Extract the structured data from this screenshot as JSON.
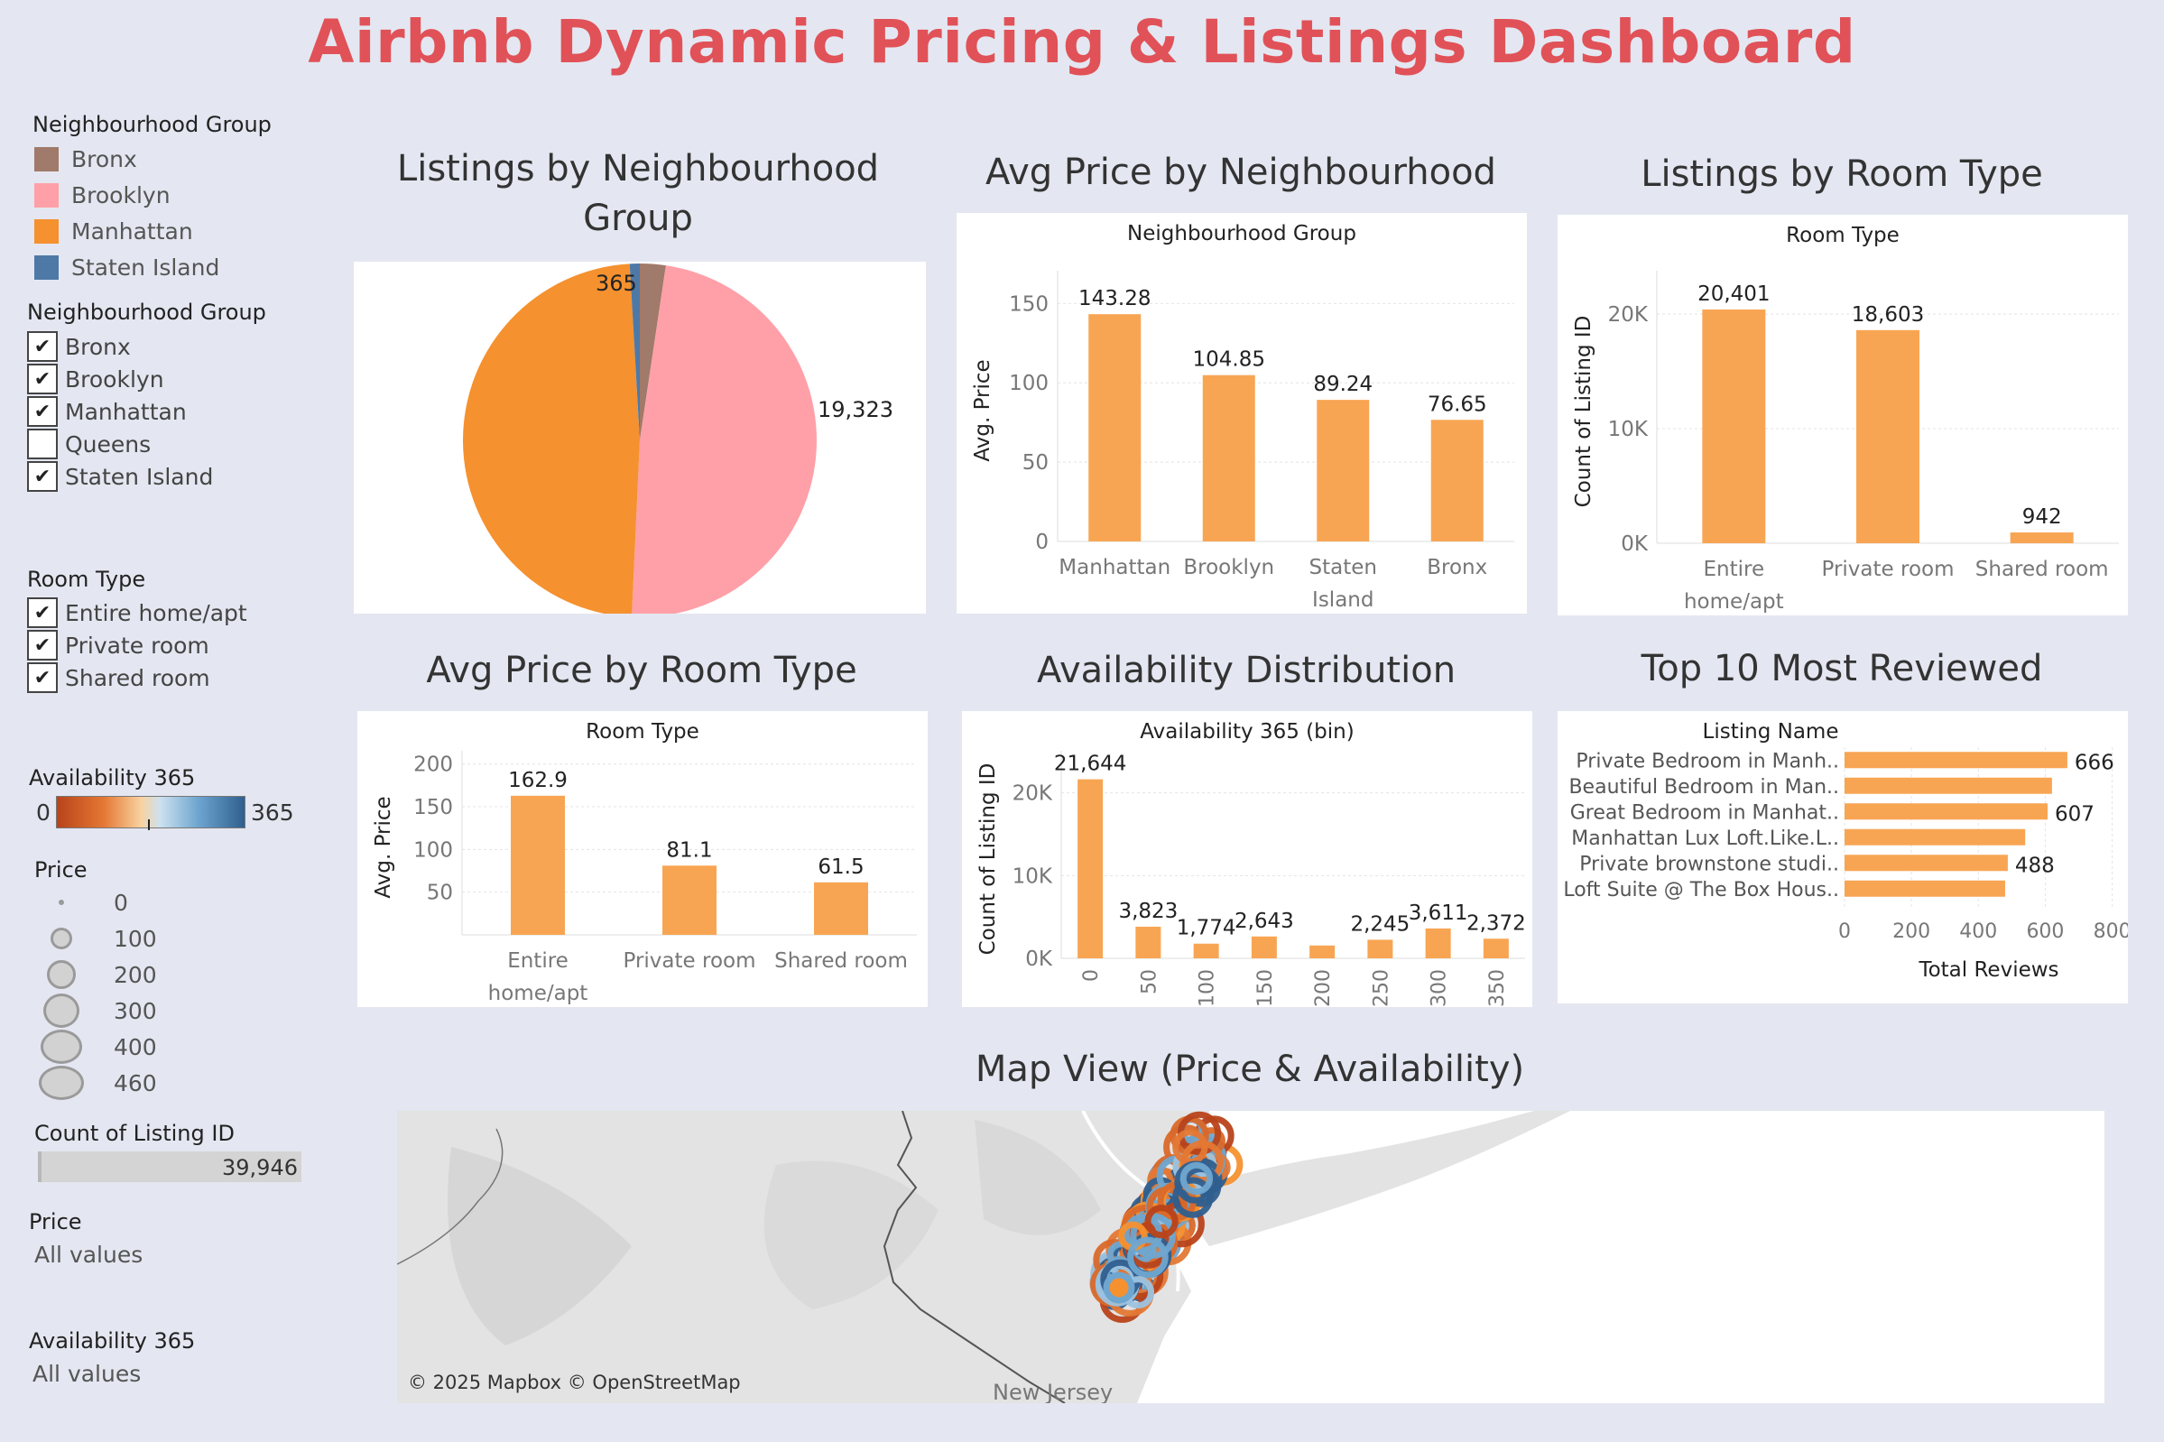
{
  "title": "Airbnb Dynamic Pricing & Listings Dashboard",
  "colors": {
    "bar": "#f8a553",
    "bronx": "#a07a6a",
    "brooklyn": "#ffa0a8",
    "manhattan": "#f5912f",
    "staten_island": "#4e79a7",
    "title": "#e05258"
  },
  "filters": {
    "legend_title": "Neighbourhood Group",
    "legend_items": [
      {
        "label": "Bronx",
        "color": "#a07a6a"
      },
      {
        "label": "Brooklyn",
        "color": "#ffa0a8"
      },
      {
        "label": "Manhattan",
        "color": "#f5912f"
      },
      {
        "label": "Staten Island",
        "color": "#4e79a7"
      }
    ],
    "ng_filter_title": "Neighbourhood Group",
    "ng_options": [
      {
        "label": "Bronx",
        "checked": true
      },
      {
        "label": "Brooklyn",
        "checked": true
      },
      {
        "label": "Manhattan",
        "checked": true
      },
      {
        "label": "Queens",
        "checked": false
      },
      {
        "label": "Staten Island",
        "checked": true
      }
    ],
    "rt_filter_title": "Room Type",
    "rt_options": [
      {
        "label": "Entire home/apt",
        "checked": true
      },
      {
        "label": "Private room",
        "checked": true
      },
      {
        "label": "Shared room",
        "checked": true
      }
    ],
    "avail_title": "Availability 365",
    "avail_min": "0",
    "avail_max": "365",
    "price_title": "Price",
    "price_sizes": [
      "0",
      "100",
      "200",
      "300",
      "400",
      "460"
    ],
    "count_title": "Count of Listing ID",
    "count_value": "39,946",
    "price_filter_title": "Price",
    "price_filter_value": "All values",
    "avail_filter_title": "Availability 365",
    "avail_filter_value": "All values"
  },
  "map": {
    "title": "Map View (Price & Availability)",
    "attribution": "© 2025 Mapbox © OpenStreetMap",
    "label_nj": "New Jersey"
  },
  "chart_data": [
    {
      "id": "pie",
      "type": "pie",
      "title": "Listings by Neighbourhood Group",
      "categories": [
        "Bronx",
        "Brooklyn",
        "Manhattan",
        "Staten Island"
      ],
      "values": [
        942,
        19323,
        19316,
        365
      ],
      "labels_shown": [
        "19,323",
        "365"
      ]
    },
    {
      "id": "avg_price_ng",
      "type": "bar",
      "title": "Avg Price by Neighbourhood",
      "header": "Neighbourhood Group",
      "ylabel": "Avg. Price",
      "categories": [
        "Manhattan",
        "Brooklyn",
        "Staten Island",
        "Bronx"
      ],
      "values": [
        143.28,
        104.85,
        89.24,
        76.65
      ],
      "value_labels": [
        "143.28",
        "104.85",
        "89.24",
        "76.65"
      ],
      "yticks": [
        0,
        50,
        100,
        150
      ],
      "ylim": [
        0,
        165
      ]
    },
    {
      "id": "listings_rt",
      "type": "bar",
      "title": "Listings by Room Type",
      "header": "Room Type",
      "ylabel": "Count of Listing ID",
      "categories": [
        "Entire home/apt",
        "Private room",
        "Shared room"
      ],
      "values": [
        20401,
        18603,
        942
      ],
      "value_labels": [
        "20,401",
        "18,603",
        "942"
      ],
      "yticks": [
        0,
        10000,
        20000
      ],
      "ytick_labels": [
        "0K",
        "10K",
        "20K"
      ],
      "ylim": [
        0,
        23000
      ]
    },
    {
      "id": "avg_price_rt",
      "type": "bar",
      "title": "Avg Price by Room Type",
      "header": "Room Type",
      "ylabel": "Avg. Price",
      "categories": [
        "Entire home/apt",
        "Private room",
        "Shared room"
      ],
      "values": [
        162.9,
        81.1,
        61.5
      ],
      "value_labels": [
        "162.9",
        "81.1",
        "61.5"
      ],
      "yticks": [
        50,
        100,
        150,
        200
      ],
      "ylim": [
        0,
        205
      ]
    },
    {
      "id": "availability",
      "type": "bar",
      "title": "Availability Distribution",
      "header": "Availability 365 (bin)",
      "ylabel": "Count of Listing ID",
      "categories": [
        "0",
        "50",
        "100",
        "150",
        "200",
        "250",
        "300",
        "350"
      ],
      "values": [
        21644,
        3823,
        1774,
        2643,
        1550,
        2245,
        3611,
        2372
      ],
      "value_labels": [
        "21,644",
        "3,823",
        "1,774",
        "2,643",
        "",
        "2,245",
        "3,611",
        "2,372"
      ],
      "yticks": [
        0,
        10000,
        20000
      ],
      "ytick_labels": [
        "0K",
        "10K",
        "20K"
      ],
      "ylim": [
        0,
        24000
      ]
    },
    {
      "id": "top_reviewed",
      "type": "bar",
      "orientation": "horizontal",
      "title": "Top 10 Most Reviewed",
      "header": "Listing Name",
      "xlabel": "Total Reviews",
      "categories": [
        "Private Bedroom in Manh..",
        "Beautiful Bedroom in Man..",
        "Great Bedroom in Manhat..",
        "Manhattan Lux Loft.Like.L..",
        "Private brownstone studi..",
        "Loft Suite @ The Box Hous.."
      ],
      "values": [
        666,
        620,
        607,
        540,
        488,
        480
      ],
      "value_labels": [
        "666",
        "",
        "607",
        "",
        "488",
        ""
      ],
      "xticks": [
        0,
        200,
        400,
        600,
        800
      ],
      "xlim": [
        0,
        820
      ]
    }
  ]
}
